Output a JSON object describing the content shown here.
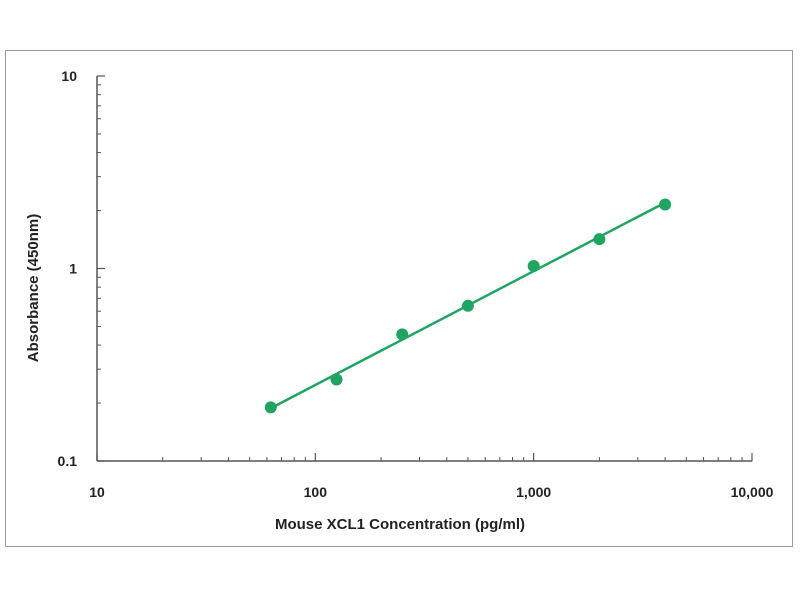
{
  "chart_data": {
    "type": "scatter",
    "title": "",
    "xlabel": "Mouse XCL1 Concentration (pg/ml)",
    "ylabel": "Absorbance (450nm)",
    "xscale": "log",
    "yscale": "log",
    "xlim": [
      10,
      10000
    ],
    "ylim": [
      0.1,
      10
    ],
    "x_ticks": [
      10,
      100,
      1000,
      10000
    ],
    "x_tick_labels": [
      "10",
      "100",
      "1,000",
      "10,000"
    ],
    "y_ticks": [
      0.1,
      1,
      10
    ],
    "y_tick_labels": [
      "0.1",
      "1",
      "10"
    ],
    "grid": false,
    "series": [
      {
        "x": [
          62.5,
          125,
          250,
          500,
          1000,
          2000,
          4000
        ],
        "y": [
          0.19,
          0.265,
          0.455,
          0.64,
          1.03,
          1.42,
          2.15
        ],
        "fit": "log-log linear",
        "fit_x": [
          62.5,
          4000
        ],
        "fit_y": [
          0.188,
          2.2
        ]
      }
    ],
    "colors": {
      "series": "#1fa462",
      "axis": "#555555"
    }
  }
}
